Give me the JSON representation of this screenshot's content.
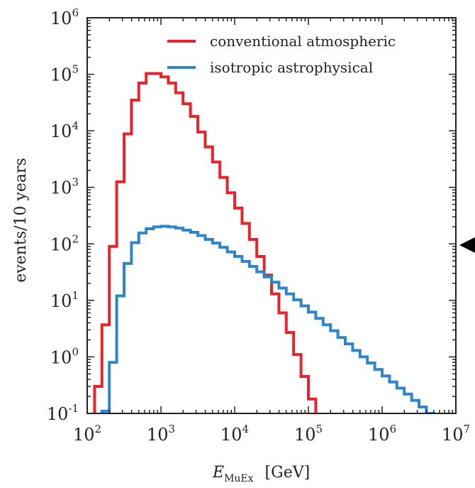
{
  "chart_data": {
    "type": "line",
    "step": true,
    "xscale": "log",
    "yscale": "log",
    "xlim": [
      100,
      10000000
    ],
    "ylim": [
      0.1,
      1000000
    ],
    "xlabel": {
      "main": "E",
      "sub": "MuEx",
      "unit": "[GeV]"
    },
    "ylabel": "events/10 years",
    "xticks": [
      {
        "base": "10",
        "exp": "2"
      },
      {
        "base": "10",
        "exp": "3"
      },
      {
        "base": "10",
        "exp": "4"
      },
      {
        "base": "10",
        "exp": "5"
      },
      {
        "base": "10",
        "exp": "6"
      },
      {
        "base": "10",
        "exp": "7"
      }
    ],
    "yticks": [
      {
        "base": "10",
        "exp": "-1"
      },
      {
        "base": "10",
        "exp": "0"
      },
      {
        "base": "10",
        "exp": "1"
      },
      {
        "base": "10",
        "exp": "2"
      },
      {
        "base": "10",
        "exp": "3"
      },
      {
        "base": "10",
        "exp": "4"
      },
      {
        "base": "10",
        "exp": "5"
      },
      {
        "base": "10",
        "exp": "6"
      }
    ],
    "legend": {
      "placement": "top-right"
    },
    "series": [
      {
        "name": "conventional atmospheric",
        "color": "#e8232b",
        "bin_start": 100,
        "bins_per_decade": 10,
        "values": [
          0.05,
          0.3,
          3.7,
          90,
          1250,
          8800,
          35000,
          70000,
          103000,
          103000,
          90000,
          70000,
          47000,
          30000,
          18000,
          9500,
          5200,
          2800,
          1500,
          800,
          430,
          230,
          120,
          60,
          28,
          13,
          6,
          2.7,
          1.1,
          0.45,
          0.18,
          0.05
        ]
      },
      {
        "name": "isotropic astrophysical",
        "color": "#2e86c9",
        "bin_start": 100,
        "bins_per_decade": 10,
        "values": [
          0.02,
          0.05,
          0.11,
          0.8,
          12,
          45,
          105,
          155,
          185,
          200,
          205,
          200,
          190,
          175,
          160,
          140,
          120,
          103,
          87,
          72,
          60,
          49,
          40,
          32,
          26,
          21,
          16.5,
          13,
          10.2,
          8,
          6.2,
          4.8,
          3.7,
          2.9,
          2.2,
          1.7,
          1.3,
          1.0,
          0.78,
          0.6,
          0.46,
          0.36,
          0.28,
          0.22,
          0.17,
          0.13,
          0.1,
          0.07
        ]
      }
    ]
  }
}
